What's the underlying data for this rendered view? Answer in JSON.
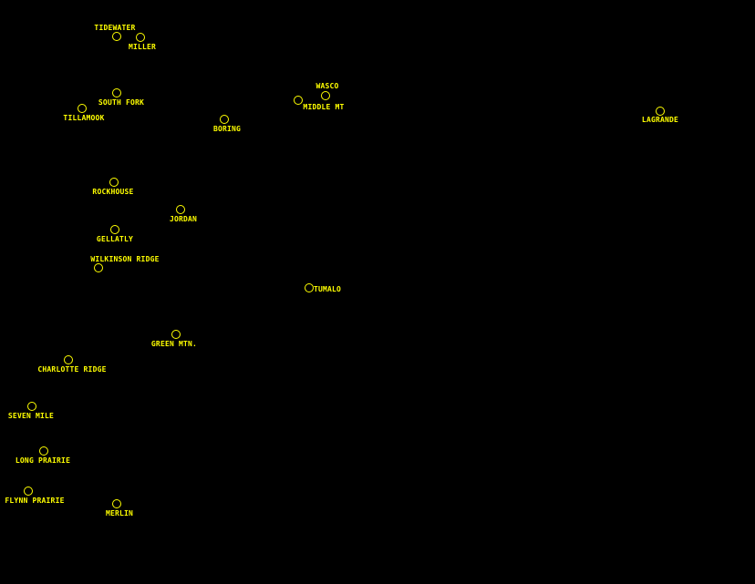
{
  "colors": {
    "background": "#000000",
    "marker": "#ffff00"
  },
  "sites": [
    {
      "name": "TIDEWATER"
    },
    {
      "name": "MILLER"
    },
    {
      "name": "SOUTH FORK"
    },
    {
      "name": "TILLAMOOK"
    },
    {
      "name": "BORING"
    },
    {
      "name": "MIDDLE MT"
    },
    {
      "name": "WASCO"
    },
    {
      "name": "LAGRANDE"
    },
    {
      "name": "ROCKHOUSE"
    },
    {
      "name": "JORDAN"
    },
    {
      "name": "GELLATLY"
    },
    {
      "name": "WILKINSON RIDGE"
    },
    {
      "name": "TUMALO"
    },
    {
      "name": "GREEN MTN."
    },
    {
      "name": "CHARLOTTE RIDGE"
    },
    {
      "name": "SEVEN MILE"
    },
    {
      "name": "LONG PRAIRIE"
    },
    {
      "name": "FLYNN PRAIRIE"
    },
    {
      "name": "MERLIN"
    }
  ]
}
